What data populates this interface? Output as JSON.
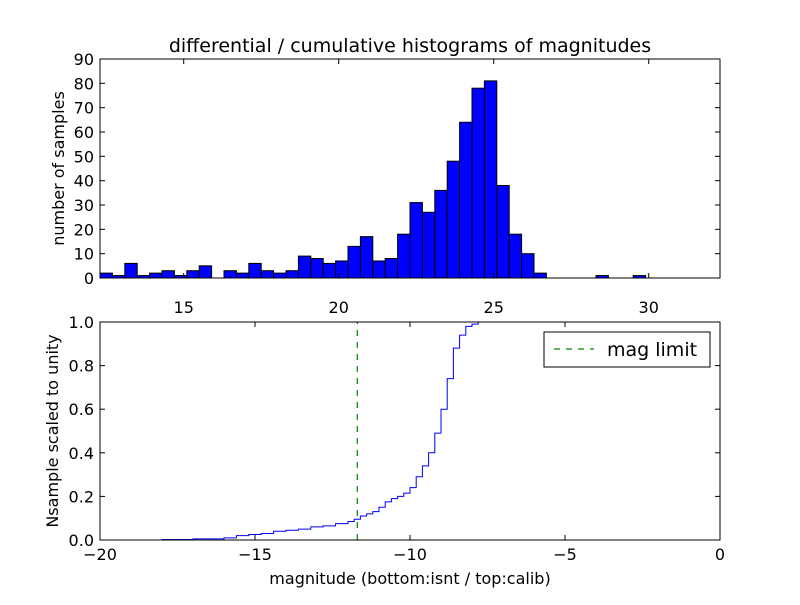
{
  "chart_data": [
    {
      "type": "bar",
      "title": "differential / cumulative histograms of magnitudes",
      "xlabel": "",
      "ylabel": "number of samples",
      "xlim": [
        12.3,
        32.3
      ],
      "ylim": [
        0,
        90
      ],
      "bar_color": "#0000ff",
      "x_ticks": [
        15,
        20,
        25,
        30
      ],
      "x_tick_position": "top-of-lower-panel",
      "y_ticks": [
        0,
        10,
        20,
        30,
        40,
        50,
        60,
        70,
        80,
        90
      ],
      "bin_start": 12.3,
      "bin_width": 0.4,
      "values": [
        2,
        1,
        6,
        1,
        2,
        3,
        1,
        3,
        5,
        0,
        3,
        2,
        6,
        3,
        2,
        3,
        9,
        8,
        6,
        7,
        13,
        17,
        7,
        8,
        18,
        31,
        27,
        36,
        48,
        64,
        78,
        81,
        38,
        18,
        10,
        2,
        0,
        0,
        0,
        0,
        1,
        0,
        0,
        1,
        0,
        0,
        0,
        0,
        0,
        0
      ],
      "grid": false
    },
    {
      "type": "line",
      "title": "",
      "xlabel": "magnitude (bottom:isnt / top:calib)",
      "ylabel": "Nsample scaled to unity",
      "xlim": [
        -20,
        0
      ],
      "ylim": [
        0,
        1.0
      ],
      "x_ticks": [
        -20,
        -15,
        -10,
        -5,
        0
      ],
      "x_tick_labels": [
        "−20",
        "−15",
        "−10",
        "−5",
        "0"
      ],
      "y_ticks": [
        0.0,
        0.2,
        0.4,
        0.6,
        0.8,
        1.0
      ],
      "y_tick_labels": [
        "0.0",
        "0.2",
        "0.4",
        "0.6",
        "0.8",
        "1.0"
      ],
      "grid": false,
      "legend_position": "top-right",
      "series": [
        {
          "name": "",
          "style": "steps-post",
          "color": "#0000ff",
          "x": [
            -20,
            -18.0,
            -17.0,
            -16.0,
            -15.6,
            -15.2,
            -14.8,
            -14.4,
            -14.0,
            -13.6,
            -13.2,
            -12.8,
            -12.4,
            -12.0,
            -11.8,
            -11.6,
            -11.4,
            -11.2,
            -11.0,
            -10.8,
            -10.6,
            -10.4,
            -10.2,
            -10.0,
            -9.8,
            -9.6,
            -9.4,
            -9.2,
            -9.0,
            -8.8,
            -8.6,
            -8.4,
            -8.2,
            -8.0,
            -7.8,
            -7.6,
            -7.4,
            -7.2,
            -7.0,
            0
          ],
          "y": [
            0.0,
            0.002,
            0.005,
            0.01,
            0.02,
            0.025,
            0.03,
            0.04,
            0.045,
            0.05,
            0.06,
            0.065,
            0.075,
            0.085,
            0.095,
            0.11,
            0.12,
            0.13,
            0.15,
            0.175,
            0.19,
            0.2,
            0.215,
            0.24,
            0.29,
            0.34,
            0.4,
            0.49,
            0.6,
            0.74,
            0.88,
            0.94,
            0.98,
            0.99,
            1.0,
            1.0,
            1.0,
            1.0,
            1.0,
            1.0
          ]
        },
        {
          "name": "mag limit",
          "style": "dashed-vertical",
          "color": "#008000",
          "x": -11.7
        }
      ]
    }
  ]
}
